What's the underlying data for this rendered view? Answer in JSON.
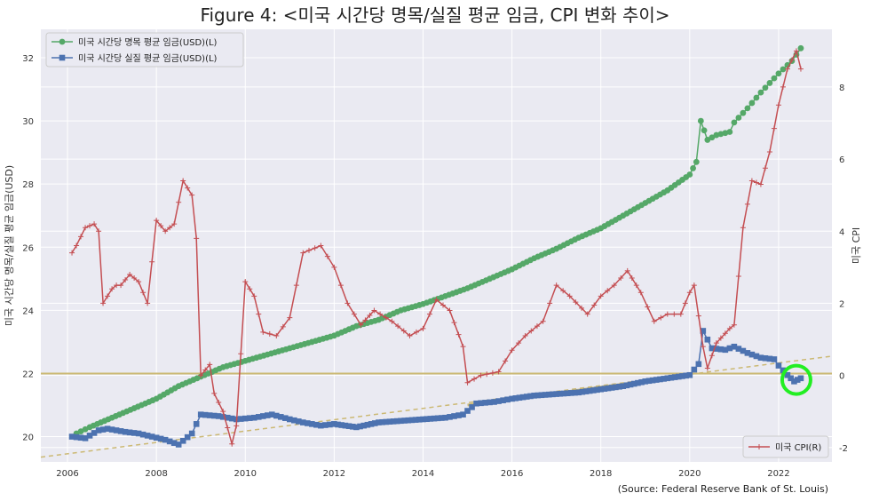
{
  "chart_data": {
    "type": "line",
    "title": "Figure 4: <미국 시간당 명목/실질 평균 임금, CPI 변화 추이>",
    "source": "(Source: Federal Reserve Bank of St. Louis)",
    "ylabel_left": "미국 시간당 명목/실질 평균 임금(USD)",
    "ylabel_right": "미국 CPI",
    "xlim": [
      2005.4,
      2023.2
    ],
    "ylim_left": [
      19.2,
      32.9
    ],
    "ylim_right": [
      -2.4,
      9.6
    ],
    "x_ticks": [
      "2006",
      "2008",
      "2010",
      "2012",
      "2014",
      "2016",
      "2018",
      "2020",
      "2022"
    ],
    "y_ticks_left": [
      "20",
      "22",
      "24",
      "26",
      "28",
      "30",
      "32"
    ],
    "y_ticks_right": [
      "-2",
      "0",
      "2",
      "4",
      "6",
      "8"
    ],
    "grid": true,
    "legend_left": {
      "placement": "upper-left",
      "entries": [
        "미국 시간당 명목 평균 임금(USD)(L)",
        "미국 시간당 실질 평균 임금(USD)(L)"
      ]
    },
    "legend_right": {
      "placement": "lower-right",
      "entries": [
        "미국 CPI(R)"
      ]
    },
    "colors": {
      "nominal": "#55a868",
      "real": "#4c72b0",
      "cpi": "#c44e52",
      "trend": "#ccb974",
      "highlight": "#22ee22",
      "background": "#eaeaf2",
      "grid": "#ffffff"
    },
    "series": [
      {
        "name": "미국 시간당 명목 평균 임금(USD)(L)",
        "axis": "left",
        "marker": "circle",
        "x": [
          2006.2,
          2006.5,
          2007.0,
          2007.5,
          2008.0,
          2008.5,
          2009.0,
          2009.5,
          2010.0,
          2010.5,
          2011.0,
          2011.5,
          2012.0,
          2012.5,
          2013.0,
          2013.5,
          2014.0,
          2014.5,
          2015.0,
          2015.5,
          2016.0,
          2016.5,
          2017.0,
          2017.5,
          2018.0,
          2018.5,
          2019.0,
          2019.5,
          2020.0,
          2020.15,
          2020.25,
          2020.4,
          2020.6,
          2020.9,
          2021.0,
          2021.3,
          2021.6,
          2022.0,
          2022.3,
          2022.5
        ],
        "values": [
          20.1,
          20.3,
          20.6,
          20.9,
          21.2,
          21.6,
          21.9,
          22.2,
          22.4,
          22.6,
          22.8,
          23.0,
          23.2,
          23.5,
          23.7,
          24.0,
          24.2,
          24.45,
          24.7,
          25.0,
          25.3,
          25.65,
          25.95,
          26.3,
          26.6,
          27.0,
          27.4,
          27.8,
          28.3,
          28.7,
          30.0,
          29.4,
          29.55,
          29.65,
          29.95,
          30.4,
          30.9,
          31.5,
          31.9,
          32.3
        ]
      },
      {
        "name": "미국 시간당 실질 평균 임금(USD)(L)",
        "axis": "left",
        "marker": "square",
        "x": [
          2006.1,
          2006.4,
          2006.7,
          2006.9,
          2007.3,
          2007.6,
          2007.9,
          2008.2,
          2008.5,
          2008.8,
          2009.0,
          2009.4,
          2009.8,
          2010.2,
          2010.6,
          2011.0,
          2011.3,
          2011.7,
          2012.0,
          2012.5,
          2013.0,
          2013.5,
          2014.0,
          2014.5,
          2014.9,
          2015.2,
          2015.6,
          2016.0,
          2016.5,
          2017.0,
          2017.5,
          2018.0,
          2018.5,
          2019.0,
          2019.5,
          2020.0,
          2020.2,
          2020.3,
          2020.5,
          2020.8,
          2021.0,
          2021.3,
          2021.6,
          2021.9,
          2022.0,
          2022.2,
          2022.35,
          2022.5
        ],
        "values": [
          20.0,
          19.95,
          20.2,
          20.25,
          20.15,
          20.1,
          20.0,
          19.9,
          19.75,
          20.1,
          20.7,
          20.65,
          20.55,
          20.6,
          20.7,
          20.55,
          20.45,
          20.35,
          20.4,
          20.3,
          20.45,
          20.5,
          20.55,
          20.6,
          20.7,
          21.05,
          21.1,
          21.2,
          21.3,
          21.35,
          21.4,
          21.5,
          21.6,
          21.75,
          21.85,
          21.95,
          22.3,
          23.35,
          22.8,
          22.75,
          22.85,
          22.65,
          22.5,
          22.45,
          22.25,
          21.95,
          21.75,
          21.85
        ]
      },
      {
        "name": "미국 CPI(R)",
        "axis": "right",
        "marker": "plus",
        "x": [
          2006.1,
          2006.2,
          2006.4,
          2006.6,
          2006.7,
          2006.8,
          2007.0,
          2007.1,
          2007.2,
          2007.4,
          2007.6,
          2007.8,
          2008.0,
          2008.2,
          2008.4,
          2008.6,
          2008.8,
          2008.9,
          2009.0,
          2009.2,
          2009.3,
          2009.5,
          2009.7,
          2009.8,
          2010.0,
          2010.2,
          2010.4,
          2010.7,
          2011.0,
          2011.3,
          2011.7,
          2012.0,
          2012.3,
          2012.6,
          2012.9,
          2013.3,
          2013.7,
          2014.0,
          2014.3,
          2014.6,
          2014.9,
          2015.0,
          2015.3,
          2015.7,
          2016.0,
          2016.3,
          2016.7,
          2017.0,
          2017.3,
          2017.7,
          2018.0,
          2018.3,
          2018.6,
          2018.9,
          2019.2,
          2019.5,
          2019.8,
          2020.0,
          2020.1,
          2020.3,
          2020.4,
          2020.6,
          2020.9,
          2021.0,
          2021.2,
          2021.4,
          2021.6,
          2021.8,
          2022.0,
          2022.2,
          2022.4,
          2022.5
        ],
        "values": [
          3.4,
          3.6,
          4.1,
          4.2,
          4.0,
          2.0,
          2.4,
          2.5,
          2.5,
          2.8,
          2.6,
          2.0,
          4.3,
          4.0,
          4.2,
          5.4,
          5.0,
          3.8,
          0.0,
          0.3,
          -0.5,
          -1.0,
          -1.9,
          -1.4,
          2.6,
          2.2,
          1.2,
          1.1,
          1.6,
          3.4,
          3.6,
          3.0,
          2.0,
          1.4,
          1.8,
          1.5,
          1.1,
          1.3,
          2.1,
          1.8,
          0.8,
          -0.2,
          0.0,
          0.1,
          0.7,
          1.1,
          1.5,
          2.5,
          2.2,
          1.7,
          2.2,
          2.5,
          2.9,
          2.3,
          1.5,
          1.7,
          1.7,
          2.3,
          2.5,
          0.8,
          0.2,
          0.9,
          1.3,
          1.4,
          4.1,
          5.4,
          5.3,
          6.2,
          7.5,
          8.5,
          9.0,
          8.5
        ]
      }
    ],
    "reference_lines": [
      {
        "axis": "left",
        "type": "horizontal",
        "y": 22.0
      },
      {
        "axis": "left",
        "type": "linear-trend-dashed",
        "x": [
          2005.4,
          2023.2
        ],
        "y": [
          19.35,
          22.55
        ]
      },
      {
        "axis": "left",
        "type": "segment-solid",
        "x": [
          2015.0,
          2020.0
        ],
        "y": [
          21.0,
          21.95
        ]
      }
    ],
    "highlight": {
      "shape": "circle",
      "x": 2022.4,
      "y": 21.8
    }
  }
}
